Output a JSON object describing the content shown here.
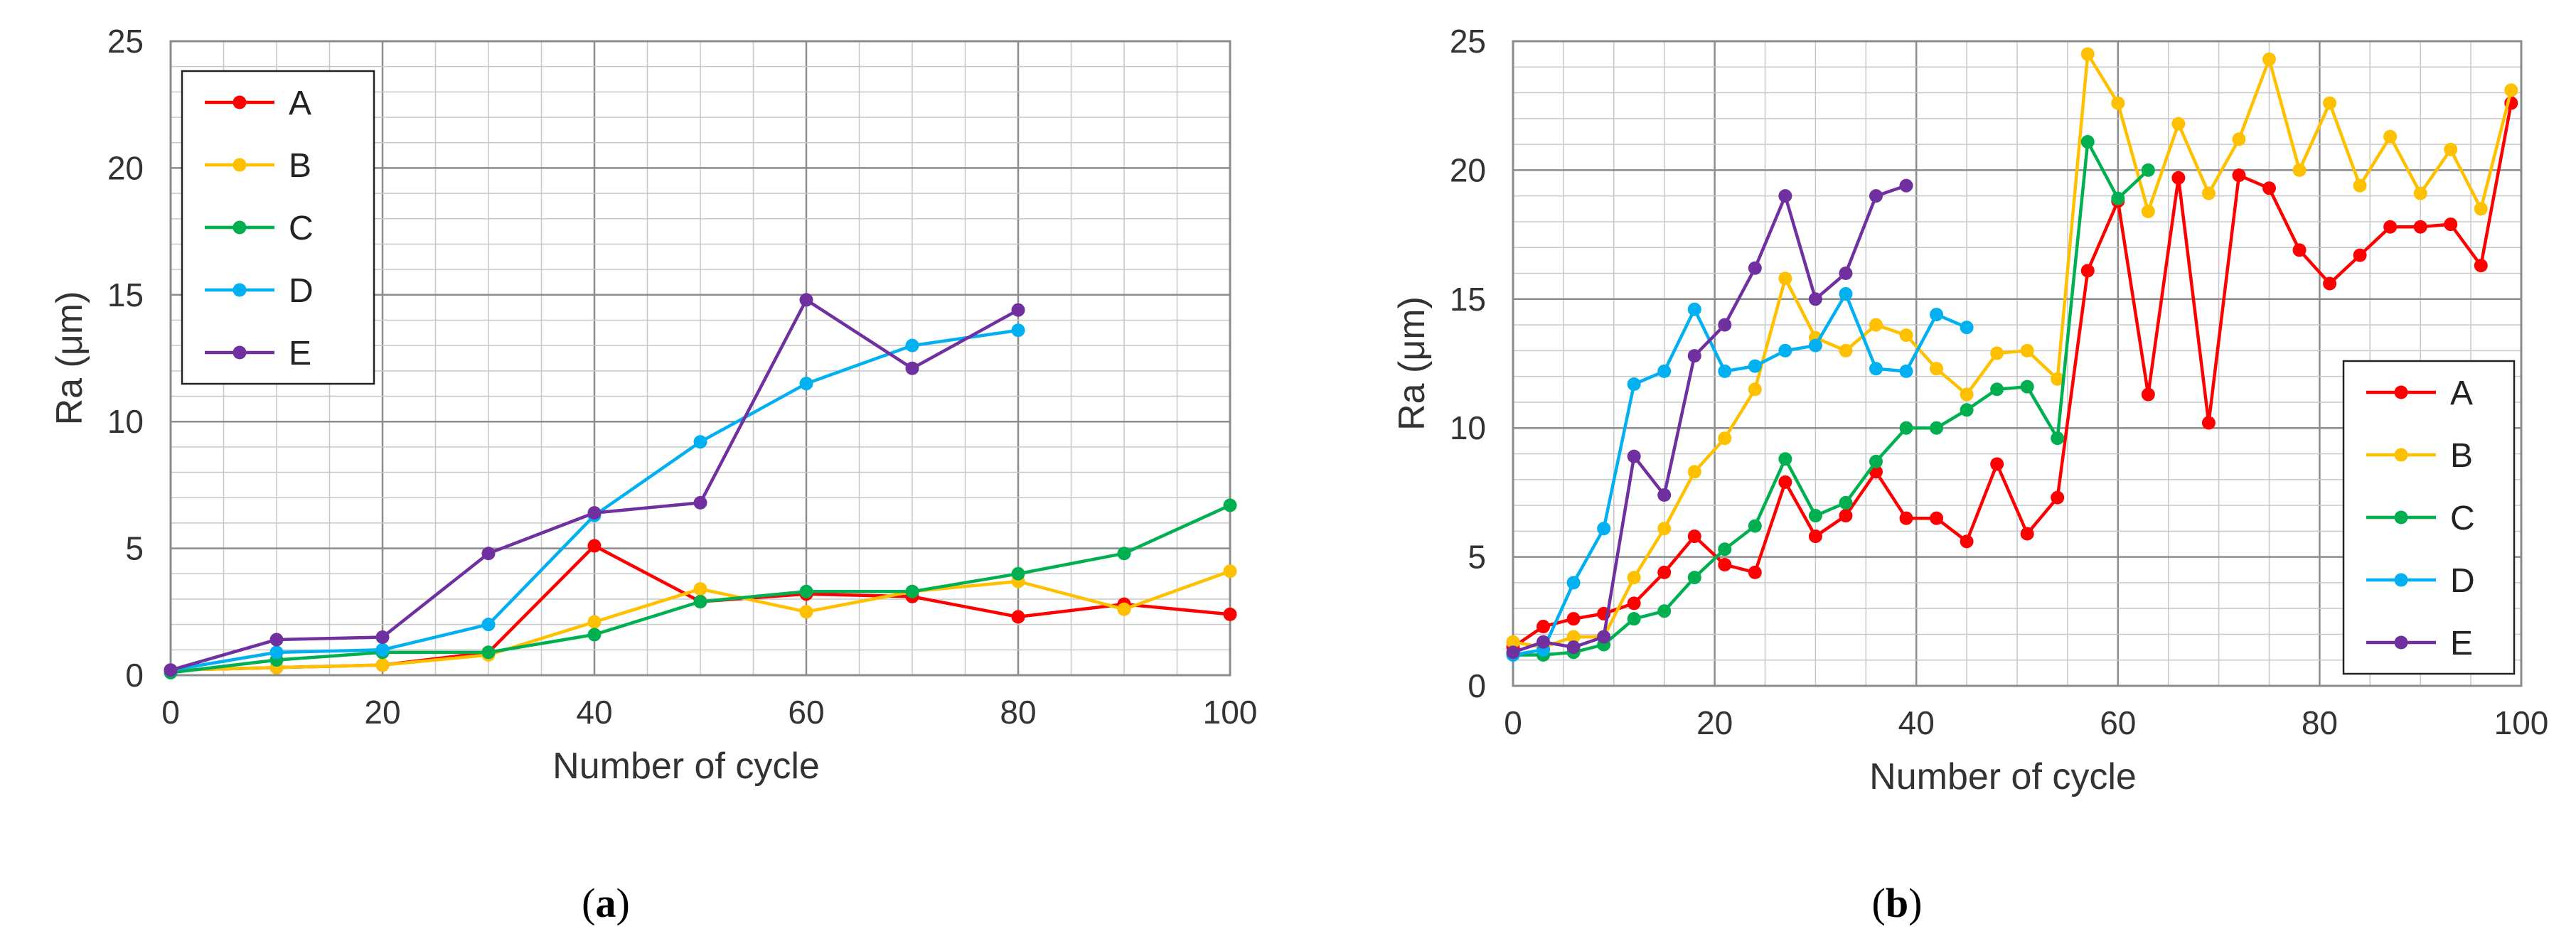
{
  "chart_data": [
    {
      "type": "line",
      "panel_label": "a",
      "title": "",
      "xlabel": "Number of cycle",
      "ylabel": "Ra (μm)",
      "xlim": [
        0,
        100
      ],
      "ylim": [
        0,
        25
      ],
      "xticks": [
        0,
        20,
        40,
        60,
        80,
        100
      ],
      "yticks": [
        0,
        5,
        10,
        15,
        20,
        25
      ],
      "minor_grid_x_step": 5,
      "minor_grid_y_step": 1,
      "grid": true,
      "legend_position": "top-left",
      "series": [
        {
          "name": "A",
          "color": "#ff0000",
          "x": [
            0,
            10,
            20,
            30,
            40,
            50,
            60,
            70,
            80,
            90,
            100
          ],
          "y": [
            0.2,
            0.3,
            0.4,
            0.9,
            5.1,
            2.9,
            3.2,
            3.1,
            2.3,
            2.8,
            2.4
          ]
        },
        {
          "name": "B",
          "color": "#ffc000",
          "x": [
            0,
            10,
            20,
            30,
            40,
            50,
            60,
            70,
            80,
            90,
            100
          ],
          "y": [
            0.2,
            0.3,
            0.4,
            0.8,
            2.1,
            3.4,
            2.5,
            3.3,
            3.7,
            2.6,
            4.1
          ]
        },
        {
          "name": "C",
          "color": "#00b050",
          "x": [
            0,
            10,
            20,
            30,
            40,
            50,
            60,
            70,
            80,
            90,
            100
          ],
          "y": [
            0.1,
            0.6,
            0.9,
            0.9,
            1.6,
            2.9,
            3.3,
            3.3,
            4.0,
            4.8,
            6.7
          ]
        },
        {
          "name": "D",
          "color": "#00b0f0",
          "x": [
            0,
            10,
            20,
            30,
            40,
            50,
            60,
            70,
            80
          ],
          "y": [
            0.2,
            0.9,
            1.0,
            2.0,
            6.3,
            9.2,
            11.5,
            13.0,
            13.6
          ]
        },
        {
          "name": "E",
          "color": "#7030a0",
          "x": [
            0,
            10,
            20,
            30,
            40,
            50,
            60,
            70,
            80
          ],
          "y": [
            0.2,
            1.4,
            1.5,
            4.8,
            6.4,
            6.8,
            14.8,
            12.1,
            14.4
          ]
        }
      ]
    },
    {
      "type": "line",
      "panel_label": "b",
      "title": "",
      "xlabel": "Number of cycle",
      "ylabel": "Ra (μm)",
      "xlim": [
        0,
        100
      ],
      "ylim": [
        0,
        25
      ],
      "xticks": [
        0,
        20,
        40,
        60,
        80,
        100
      ],
      "yticks": [
        0,
        5,
        10,
        15,
        20,
        25
      ],
      "minor_grid_x_step": 5,
      "minor_grid_y_step": 1,
      "grid": true,
      "legend_position": "bottom-right",
      "series": [
        {
          "name": "A",
          "color": "#ff0000",
          "x": [
            0,
            3,
            6,
            9,
            12,
            15,
            18,
            21,
            24,
            27,
            30,
            33,
            36,
            39,
            42,
            45,
            48,
            51,
            54,
            57,
            60,
            63,
            66,
            69,
            72,
            75,
            78,
            81,
            84,
            87,
            90,
            93,
            96,
            99
          ],
          "y": [
            1.5,
            2.3,
            2.6,
            2.8,
            3.2,
            4.4,
            5.8,
            4.7,
            4.4,
            7.9,
            5.8,
            6.6,
            8.3,
            6.5,
            6.5,
            5.6,
            8.6,
            5.9,
            7.3,
            16.1,
            18.8,
            11.3,
            19.7,
            10.2,
            19.8,
            19.3,
            16.9,
            15.6,
            16.7,
            17.8,
            17.8,
            17.9,
            16.3,
            22.6
          ]
        },
        {
          "name": "B",
          "color": "#ffc000",
          "x": [
            0,
            3,
            6,
            9,
            12,
            15,
            18,
            21,
            24,
            27,
            30,
            33,
            36,
            39,
            42,
            45,
            48,
            51,
            54,
            57,
            60,
            63,
            66,
            69,
            72,
            75,
            78,
            81,
            84,
            87,
            90,
            93,
            96,
            99
          ],
          "y": [
            1.7,
            1.5,
            1.9,
            1.9,
            4.2,
            6.1,
            8.3,
            9.6,
            11.5,
            15.8,
            13.5,
            13.0,
            14.0,
            13.6,
            12.3,
            11.3,
            12.9,
            13.0,
            11.9,
            24.5,
            22.6,
            18.4,
            21.8,
            19.1,
            21.2,
            24.3,
            20.0,
            22.6,
            19.4,
            21.3,
            19.1,
            20.8,
            18.5,
            23.1
          ]
        },
        {
          "name": "C",
          "color": "#00b050",
          "x": [
            0,
            3,
            6,
            9,
            12,
            15,
            18,
            21,
            24,
            27,
            30,
            33,
            36,
            39,
            42,
            45,
            48,
            51,
            54,
            57,
            60,
            63
          ],
          "y": [
            1.2,
            1.2,
            1.3,
            1.6,
            2.6,
            2.9,
            4.2,
            5.3,
            6.2,
            8.8,
            6.6,
            7.1,
            8.7,
            10.0,
            10.0,
            10.7,
            11.5,
            11.6,
            9.6,
            21.1,
            18.9,
            20.0
          ]
        },
        {
          "name": "D",
          "color": "#00b0f0",
          "x": [
            0,
            3,
            6,
            9,
            12,
            15,
            18,
            21,
            24,
            27,
            30,
            33,
            36,
            39,
            42,
            45
          ],
          "y": [
            1.2,
            1.4,
            4.0,
            6.1,
            11.7,
            12.2,
            14.6,
            12.2,
            12.4,
            13.0,
            13.2,
            15.2,
            12.3,
            12.2,
            14.4,
            13.9
          ]
        },
        {
          "name": "E",
          "color": "#7030a0",
          "x": [
            0,
            3,
            6,
            9,
            12,
            15,
            18,
            21,
            24,
            27,
            30,
            33,
            36,
            39
          ],
          "y": [
            1.3,
            1.7,
            1.5,
            1.9,
            8.9,
            7.4,
            12.8,
            14.0,
            16.2,
            19.0,
            15.0,
            16.0,
            19.0,
            19.4
          ]
        }
      ]
    }
  ]
}
